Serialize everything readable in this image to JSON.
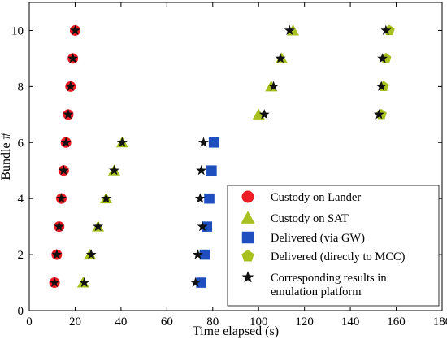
{
  "chart_data": {
    "type": "scatter",
    "xlabel": "Time elapsed (s)",
    "ylabel": "Bundle #",
    "xlim": [
      0,
      180
    ],
    "ylim": [
      0,
      11
    ],
    "xticks": [
      "0",
      "20",
      "40",
      "60",
      "80",
      "100",
      "120",
      "140",
      "160",
      "180"
    ],
    "yticks": [
      "0",
      "2",
      "4",
      "6",
      "8",
      "10"
    ],
    "grid": false,
    "legend_position": "bottom-right",
    "series": [
      {
        "name": "Custody on Lander",
        "marker": "circle",
        "color": "#ee1c25",
        "points": [
          [
            11,
            1
          ],
          [
            12,
            2
          ],
          [
            13,
            3
          ],
          [
            14,
            4
          ],
          [
            15,
            5
          ],
          [
            16,
            6
          ],
          [
            17,
            7
          ],
          [
            18,
            8
          ],
          [
            19,
            9
          ],
          [
            20,
            10
          ]
        ]
      },
      {
        "name": "Custody on SAT",
        "marker": "triangle",
        "color": "#a8c020",
        "points": [
          [
            23.5,
            1
          ],
          [
            26.5,
            2
          ],
          [
            30,
            3
          ],
          [
            33.5,
            4
          ],
          [
            37,
            5
          ],
          [
            40.5,
            6
          ],
          [
            100,
            7
          ],
          [
            105.5,
            8
          ],
          [
            110,
            9
          ],
          [
            115,
            10
          ]
        ]
      },
      {
        "name": "Delivered (via GW)",
        "marker": "square",
        "color": "#1f4fbf",
        "points": [
          [
            75,
            1
          ],
          [
            76.5,
            2
          ],
          [
            77.5,
            3
          ],
          [
            78.5,
            4
          ],
          [
            79.5,
            5
          ],
          [
            80.5,
            6
          ]
        ]
      },
      {
        "name": "Delivered (directly to MCC)",
        "marker": "pentagon",
        "color": "#a8c020",
        "points": [
          [
            153.5,
            7
          ],
          [
            154.5,
            8
          ],
          [
            155.5,
            9
          ],
          [
            157,
            10
          ]
        ]
      },
      {
        "name": "Corresponding results in emulation platform",
        "name_lines": [
          "Corresponding results in",
          "emulation platform"
        ],
        "marker": "star",
        "color": "#111111",
        "points": [
          [
            11,
            1
          ],
          [
            12,
            2
          ],
          [
            13,
            3
          ],
          [
            14,
            4
          ],
          [
            15,
            5
          ],
          [
            16,
            6
          ],
          [
            17,
            7
          ],
          [
            18,
            8
          ],
          [
            19,
            9
          ],
          [
            20,
            10
          ],
          [
            24,
            1
          ],
          [
            27,
            2
          ],
          [
            30,
            3
          ],
          [
            33.5,
            4
          ],
          [
            37,
            5
          ],
          [
            40.5,
            6
          ],
          [
            102.5,
            7
          ],
          [
            106.5,
            8
          ],
          [
            109.5,
            9
          ],
          [
            113.5,
            10
          ],
          [
            72.5,
            1
          ],
          [
            73.5,
            2
          ],
          [
            75.5,
            3
          ],
          [
            74.5,
            4
          ],
          [
            75,
            5
          ],
          [
            76,
            6
          ],
          [
            152.5,
            7
          ],
          [
            153.5,
            8
          ],
          [
            154,
            9
          ],
          [
            155.5,
            10
          ]
        ]
      }
    ]
  }
}
